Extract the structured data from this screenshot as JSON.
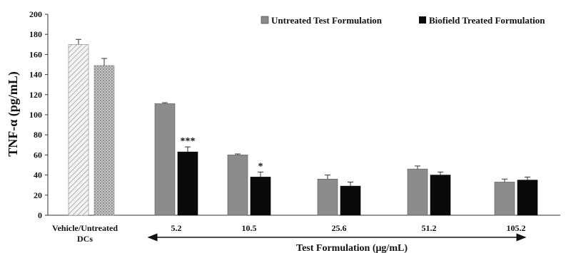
{
  "chart_data": {
    "type": "bar",
    "ylabel": "TNF-α (pg/mL)",
    "xlabel": "Test Formulation (μg/mL)",
    "ylim": [
      0,
      200
    ],
    "yticks": [
      0,
      20,
      40,
      60,
      80,
      100,
      120,
      140,
      160,
      180,
      200
    ],
    "legend_position": "top-right",
    "control_category": [
      "Vehicle/Untreated",
      "DCs"
    ],
    "control_bars": [
      {
        "label": "Vehicle",
        "value": 170,
        "error": 5,
        "pattern": "diagonal-hatch"
      },
      {
        "label": "Untreated DCs",
        "value": 149,
        "error": 7,
        "pattern": "dotted"
      }
    ],
    "categories": [
      "5.2",
      "10.5",
      "25.6",
      "51.2",
      "105.2"
    ],
    "series": [
      {
        "name": "Untreated Test Formulation",
        "color": "#8c8c8c",
        "values": [
          111,
          60,
          36,
          46,
          33
        ],
        "errors": [
          1,
          1,
          4,
          3,
          3
        ]
      },
      {
        "name": "Biofield Treated Formulation",
        "color": "#0a0a0a",
        "values": [
          63,
          38,
          29,
          40,
          35
        ],
        "errors": [
          5,
          5,
          4,
          3,
          3
        ]
      }
    ],
    "significance": [
      {
        "category": "5.2",
        "series": 1,
        "label": "***"
      },
      {
        "category": "10.5",
        "series": 1,
        "label": "*"
      }
    ],
    "grid": false
  }
}
